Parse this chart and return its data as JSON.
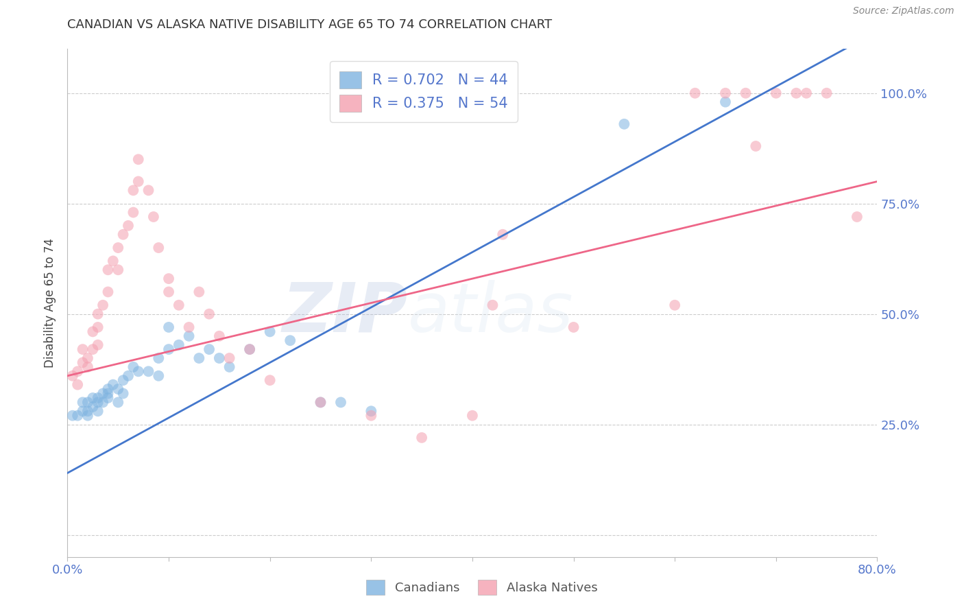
{
  "title": "CANADIAN VS ALASKA NATIVE DISABILITY AGE 65 TO 74 CORRELATION CHART",
  "source": "Source: ZipAtlas.com",
  "ylabel": "Disability Age 65 to 74",
  "xlim": [
    0.0,
    0.8
  ],
  "ylim": [
    -0.05,
    1.1
  ],
  "legend_blue_r": "R = 0.702",
  "legend_blue_n": "N = 44",
  "legend_pink_r": "R = 0.375",
  "legend_pink_n": "N = 54",
  "blue_color": "#7EB3E0",
  "pink_color": "#F4A0B0",
  "blue_line_color": "#4477CC",
  "pink_line_color": "#EE6688",
  "axis_label_color": "#5577CC",
  "title_color": "#333333",
  "blue_scatter_x": [
    0.005,
    0.01,
    0.015,
    0.015,
    0.02,
    0.02,
    0.02,
    0.025,
    0.025,
    0.03,
    0.03,
    0.03,
    0.035,
    0.035,
    0.04,
    0.04,
    0.04,
    0.045,
    0.05,
    0.05,
    0.055,
    0.055,
    0.06,
    0.065,
    0.07,
    0.08,
    0.09,
    0.09,
    0.1,
    0.1,
    0.11,
    0.12,
    0.13,
    0.14,
    0.15,
    0.16,
    0.18,
    0.2,
    0.22,
    0.25,
    0.27,
    0.3,
    0.55,
    0.65
  ],
  "blue_scatter_y": [
    0.27,
    0.27,
    0.28,
    0.3,
    0.27,
    0.28,
    0.3,
    0.29,
    0.31,
    0.28,
    0.3,
    0.31,
    0.3,
    0.32,
    0.31,
    0.32,
    0.33,
    0.34,
    0.3,
    0.33,
    0.32,
    0.35,
    0.36,
    0.38,
    0.37,
    0.37,
    0.36,
    0.4,
    0.42,
    0.47,
    0.43,
    0.45,
    0.4,
    0.42,
    0.4,
    0.38,
    0.42,
    0.46,
    0.44,
    0.3,
    0.3,
    0.28,
    0.93,
    0.98
  ],
  "pink_scatter_x": [
    0.005,
    0.01,
    0.01,
    0.015,
    0.015,
    0.02,
    0.02,
    0.025,
    0.025,
    0.03,
    0.03,
    0.03,
    0.035,
    0.04,
    0.04,
    0.045,
    0.05,
    0.05,
    0.055,
    0.06,
    0.065,
    0.065,
    0.07,
    0.07,
    0.08,
    0.085,
    0.09,
    0.1,
    0.1,
    0.11,
    0.12,
    0.13,
    0.14,
    0.15,
    0.16,
    0.18,
    0.2,
    0.25,
    0.3,
    0.35,
    0.4,
    0.42,
    0.43,
    0.5,
    0.6,
    0.62,
    0.65,
    0.67,
    0.68,
    0.7,
    0.72,
    0.73,
    0.75,
    0.78
  ],
  "pink_scatter_y": [
    0.36,
    0.34,
    0.37,
    0.39,
    0.42,
    0.38,
    0.4,
    0.42,
    0.46,
    0.43,
    0.47,
    0.5,
    0.52,
    0.55,
    0.6,
    0.62,
    0.6,
    0.65,
    0.68,
    0.7,
    0.73,
    0.78,
    0.8,
    0.85,
    0.78,
    0.72,
    0.65,
    0.55,
    0.58,
    0.52,
    0.47,
    0.55,
    0.5,
    0.45,
    0.4,
    0.42,
    0.35,
    0.3,
    0.27,
    0.22,
    0.27,
    0.52,
    0.68,
    0.47,
    0.52,
    1.0,
    1.0,
    1.0,
    0.88,
    1.0,
    1.0,
    1.0,
    1.0,
    0.72
  ],
  "blue_line_y_intercept": 0.14,
  "blue_line_slope": 1.25,
  "pink_line_y_intercept": 0.36,
  "pink_line_slope": 0.55,
  "watermark_zip": "ZIP",
  "watermark_atlas": "atlas",
  "legend_label_canadians": "Canadians",
  "legend_label_alaska": "Alaska Natives",
  "background_color": "#FFFFFF",
  "grid_color": "#CCCCCC"
}
